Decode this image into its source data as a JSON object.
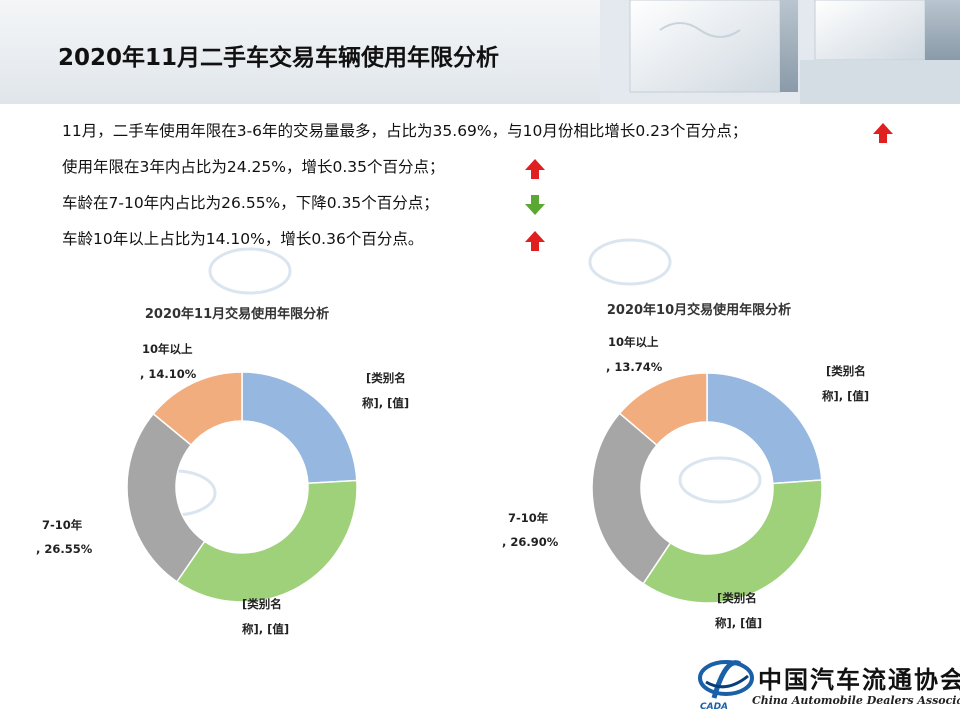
{
  "page": {
    "title": "2020年11月二手车交易车辆使用年限分析"
  },
  "bullets": [
    {
      "text": "11月，二手车使用年限在3-6年的交易量最多，占比为35.69%，与10月份相比增长0.23个百分点；",
      "trend": "up"
    },
    {
      "text": "使用年限在3年内占比为24.25%，增长0.35个百分点；",
      "trend": "up"
    },
    {
      "text": "车龄在7-10年内占比为26.55%，下降0.35个百分点；",
      "trend": "down"
    },
    {
      "text": "车龄10年以上占比为14.10%，增长0.36个百分点。",
      "trend": "up"
    }
  ],
  "colors": {
    "up": "#e02020",
    "down": "#5aa832",
    "slice_3y": "#95b7e0",
    "slice_3_6": "#9fd07a",
    "slice_7_10": "#a6a6a6",
    "slice_10plus": "#f2ad7f"
  },
  "chart_data": [
    {
      "type": "pie",
      "donut": true,
      "title": "2020年11月交易使用年限分析",
      "categories": [
        "[类别名称]",
        "[类别名称]",
        "7-10年",
        "10年以上"
      ],
      "values": [
        24.25,
        35.69,
        26.55,
        14.1
      ],
      "labels": [
        {
          "line1": "[类别名",
          "line2": "称], [值]"
        },
        {
          "line1": "[类别名",
          "line2": "称], [值]"
        },
        {
          "line1": "7-10年",
          "line2": ", 26.55%"
        },
        {
          "line1": "10年以上",
          "line2": ", 14.10%"
        }
      ]
    },
    {
      "type": "pie",
      "donut": true,
      "title": "2020年10月交易使用年限分析",
      "categories": [
        "[类别名称]",
        "[类别名称]",
        "7-10年",
        "10年以上"
      ],
      "values": [
        23.9,
        35.46,
        26.9,
        13.74
      ],
      "labels": [
        {
          "line1": "[类别名",
          "line2": "称], [值]"
        },
        {
          "line1": "[类别名",
          "line2": "称], [值]"
        },
        {
          "line1": "7-10年",
          "line2": ", 26.90%"
        },
        {
          "line1": "10年以上",
          "line2": ", 13.74%"
        }
      ]
    }
  ],
  "logo": {
    "name_cn": "中国汽车流通协会",
    "name_en": "China Automobile Dealers Association",
    "abbr": "CADA"
  }
}
